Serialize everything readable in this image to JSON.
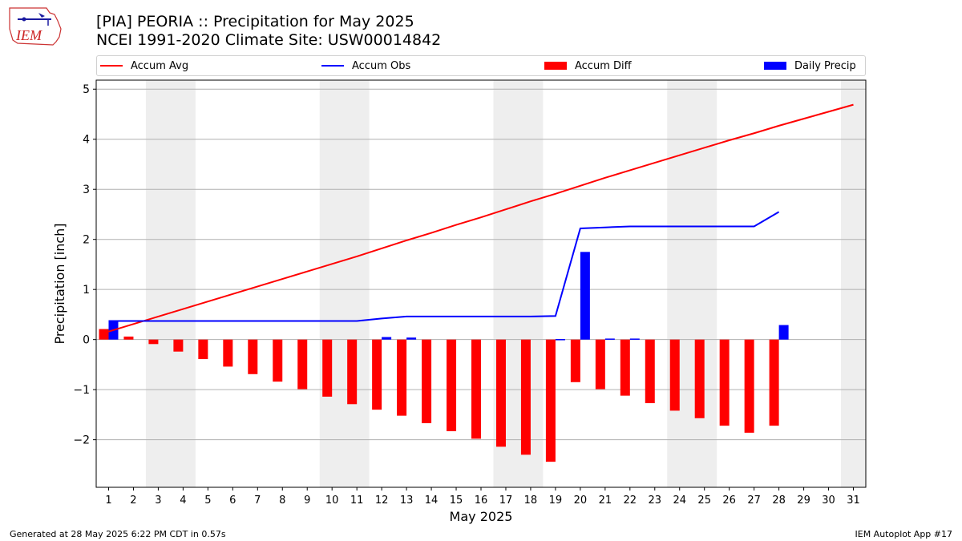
{
  "header": {
    "logo_text": "IEM",
    "title_line1": "[PIA] PEORIA :: Precipitation for May 2025",
    "title_line2": "NCEI 1991-2020 Climate Site: USW00014842"
  },
  "legend": {
    "items": [
      {
        "label": "Accum Avg",
        "kind": "line",
        "color": "#ff0000"
      },
      {
        "label": "Accum Obs",
        "kind": "line",
        "color": "#0000ff"
      },
      {
        "label": "Accum Diff",
        "kind": "box",
        "color": "#ff0000"
      },
      {
        "label": "Daily Precip",
        "kind": "box",
        "color": "#0000ff"
      }
    ]
  },
  "footer": {
    "left": "Generated at 28 May 2025 6:22 PM CDT in 0.57s",
    "right": "IEM Autoplot App #17"
  },
  "chart_data": {
    "type": "bar",
    "xlabel": "May 2025",
    "ylabel": "Precipitation [inch]",
    "ylim": [
      -2.95,
      5.18
    ],
    "yticks": [
      -2,
      -1,
      0,
      1,
      2,
      3,
      4,
      5
    ],
    "ytick_labels": [
      "−2",
      "−1",
      "0",
      "1",
      "2",
      "3",
      "4",
      "5"
    ],
    "x": [
      1,
      2,
      3,
      4,
      5,
      6,
      7,
      8,
      9,
      10,
      11,
      12,
      13,
      14,
      15,
      16,
      17,
      18,
      19,
      20,
      21,
      22,
      23,
      24,
      25,
      26,
      27,
      28,
      29,
      30,
      31
    ],
    "weekend_shading": [
      [
        3,
        4
      ],
      [
        10,
        11
      ],
      [
        17,
        18
      ],
      [
        24,
        25
      ],
      [
        31,
        31
      ]
    ],
    "grid": true,
    "colors": {
      "accum_avg": "#ff0000",
      "accum_obs": "#0000ff",
      "accum_diff": "#ff0000",
      "daily_precip": "#0000ff",
      "shade": "#eeeeee"
    },
    "accum_avg": [
      0.16,
      0.31,
      0.46,
      0.61,
      0.76,
      0.91,
      1.06,
      1.21,
      1.36,
      1.51,
      1.66,
      1.82,
      1.98,
      2.13,
      2.29,
      2.44,
      2.6,
      2.76,
      2.91,
      3.07,
      3.23,
      3.38,
      3.53,
      3.68,
      3.83,
      3.98,
      4.12,
      4.27,
      4.41,
      4.55,
      4.69
    ],
    "accum_obs": [
      0.37,
      0.37,
      0.37,
      0.37,
      0.37,
      0.37,
      0.37,
      0.37,
      0.37,
      0.37,
      0.37,
      0.42,
      0.46,
      0.46,
      0.46,
      0.46,
      0.46,
      0.46,
      0.47,
      2.22,
      2.24,
      2.26,
      2.26,
      2.26,
      2.26,
      2.26,
      2.26,
      2.55
    ],
    "accum_diff": [
      0.21,
      0.06,
      -0.09,
      -0.24,
      -0.39,
      -0.54,
      -0.69,
      -0.84,
      -0.99,
      -1.14,
      -1.29,
      -1.4,
      -1.52,
      -1.67,
      -1.83,
      -1.98,
      -2.14,
      -2.3,
      -2.44,
      -0.85,
      -0.99,
      -1.12,
      -1.27,
      -1.42,
      -1.57,
      -1.72,
      -1.86,
      -1.72
    ],
    "daily_precip": [
      0.37,
      0,
      0,
      0,
      0,
      0,
      0,
      0,
      0,
      0,
      0,
      0.05,
      0.04,
      0,
      0,
      0,
      0,
      0,
      0.01,
      1.75,
      0.02,
      0.02,
      0,
      0,
      0,
      0,
      0,
      0.29
    ]
  }
}
